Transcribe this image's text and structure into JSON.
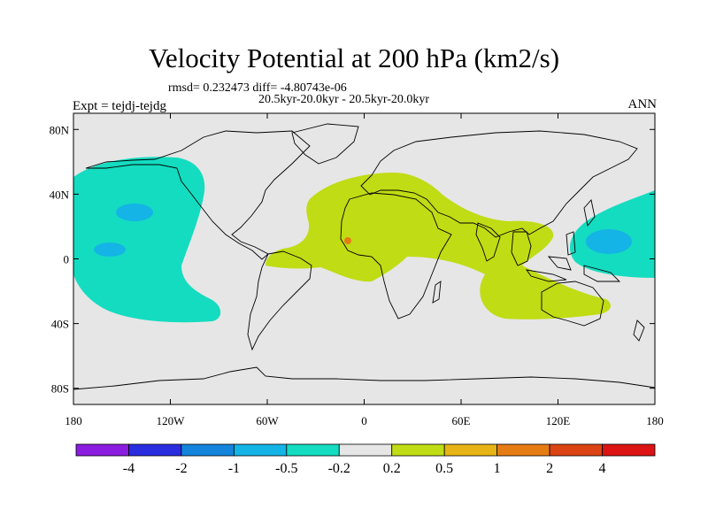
{
  "chart_data": {
    "type": "contour-map",
    "title": "Velocity Potential at 200 hPa (km2/s)",
    "stats_line": "rmsd= 0.232473 diff= -4.80743e-06",
    "case_line": "20.5kyr-20.0kyr - 20.5kyr-20.0kyr",
    "experiment_label": "Expt = tejdj-tejdg",
    "season": "ANN",
    "x_ticks": [
      "180",
      "120W",
      "60W",
      "0",
      "60E",
      "120E",
      "180"
    ],
    "y_ticks": [
      "80N",
      "40N",
      "0",
      "40S",
      "80S"
    ],
    "lon_range": [
      -180,
      180
    ],
    "lat_range": [
      -90,
      90
    ],
    "contour_levels": [
      "-4",
      "-2",
      "-1",
      "-0.5",
      "-0.2",
      "0.2",
      "0.5",
      "1",
      "2",
      "4"
    ],
    "colorbar_colors": [
      "#8b1de0",
      "#2a2ce0",
      "#1484dc",
      "#14b4e6",
      "#14dcc0",
      "#e6e6e6",
      "#c0dc14",
      "#e6b414",
      "#e67c14",
      "#dc4414",
      "#dc1414"
    ],
    "regions": [
      {
        "name": "central-pacific-negative",
        "level": "-0.5 to -0.2",
        "lon": [
          -180,
          -106
        ],
        "lat": [
          -35,
          64
        ]
      },
      {
        "name": "central-pacific-core-north",
        "level": "-1 to -0.5",
        "lon": [
          -166,
          -154
        ],
        "lat": [
          28,
          36
        ]
      },
      {
        "name": "central-pacific-core-south",
        "level": "-1 to -0.5",
        "lon": [
          -172,
          -160
        ],
        "lat": [
          4,
          12
        ]
      },
      {
        "name": "west-pacific-negative",
        "level": "-0.5 to -0.2",
        "lon": [
          125,
          180
        ],
        "lat": [
          -10,
          44
        ]
      },
      {
        "name": "west-pacific-core",
        "level": "-1 to -0.5",
        "lon": [
          136,
          160
        ],
        "lat": [
          6,
          20
        ]
      },
      {
        "name": "africa-indian-ocean-positive",
        "level": "0.2 to 0.5",
        "lon": [
          -56,
          150
        ],
        "lat": [
          -35,
          55
        ]
      },
      {
        "name": "west-africa-max",
        "level": "0.5 to 1",
        "lon": [
          -4,
          -2
        ],
        "lat": [
          12,
          14
        ]
      }
    ]
  }
}
